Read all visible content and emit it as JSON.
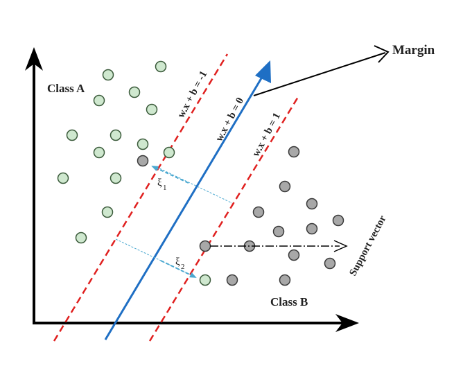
{
  "labels": {
    "class_a": "Class A",
    "class_b": "Class B",
    "margin": "Margin",
    "support_vector": "Support vector",
    "eq_neg": "w.x + b = -1",
    "eq_zero": "w.x + b = 0",
    "eq_pos": "w.x + b = 1",
    "xi_1_base": "ξ",
    "xi_1_sub": "1",
    "xi_2_base": "ξ",
    "xi_2_sub": "2"
  },
  "colors": {
    "class_a_fill": "#cfe8cf",
    "class_a_stroke": "#3a5a3a",
    "class_b_fill": "#a8a8a8",
    "class_b_stroke": "#3a3a3a",
    "margin_lines": "#e0201f",
    "hyperplane": "#1f6fc4",
    "slack_arrows": "#4aa8d0",
    "axes": "#000000"
  },
  "icons": {
    "axis_arrows": "arrowhead-icon",
    "hyperplane_arrow": "arrowhead-icon",
    "margin_pointer": "open-arrowhead-icon"
  }
}
